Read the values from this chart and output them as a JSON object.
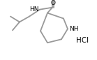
{
  "bg_color": "#ffffff",
  "line_color": "#999999",
  "text_color": "#000000",
  "bond_width": 1.3,
  "font_size": 6.5,
  "figsize": [
    1.39,
    0.86
  ],
  "dpi": 100,
  "xlim": [
    0,
    139
  ],
  "ylim": [
    0,
    86
  ]
}
